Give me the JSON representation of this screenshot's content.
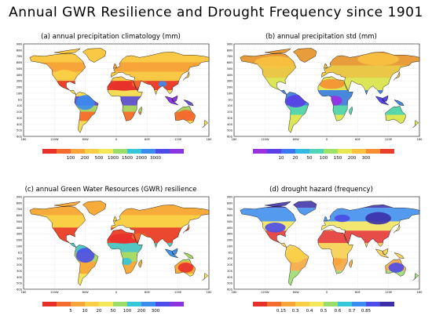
{
  "main_title": "Annual GWR Resilience and Drought Frequency since 1901",
  "axes": {
    "lat_labels": [
      "90N",
      "80N",
      "70N",
      "60N",
      "50N",
      "40N",
      "30N",
      "20N",
      "10N",
      "EQ",
      "10S",
      "20S",
      "30S",
      "40S",
      "50S",
      "60S"
    ],
    "lon_labels": [
      "180",
      "120W",
      "60W",
      "0",
      "60E",
      "120E",
      "180"
    ]
  },
  "panels": [
    {
      "title": "(a) annual precipitation climatology (mm)",
      "colorbar": {
        "labels": [
          "100",
          "200",
          "500",
          "1000",
          "1500",
          "2000",
          "3000"
        ],
        "colors": [
          "#e8302b",
          "#f46b2e",
          "#f7a43a",
          "#f9cf46",
          "#f3e85a",
          "#9bdd6a",
          "#35c6d9",
          "#3a8cf0",
          "#4d4be8",
          "#8b35e0"
        ]
      }
    },
    {
      "title": "(b) annual precipitation std (mm)",
      "colorbar": {
        "labels": [
          "10",
          "20",
          "50",
          "100",
          "150",
          "200",
          "300"
        ],
        "colors": [
          "#9b30e0",
          "#5a3ee6",
          "#3a78f0",
          "#33b8e2",
          "#4fd4b8",
          "#9de36a",
          "#e8e652",
          "#f8c241",
          "#f68f33",
          "#e8402b"
        ]
      }
    },
    {
      "title": "(c) annual Green Water Resources (GWR) resilience",
      "colorbar": {
        "labels": [
          "5",
          "10",
          "20",
          "50",
          "100",
          "200",
          "300"
        ],
        "colors": [
          "#e8302b",
          "#f46b2e",
          "#f7a43a",
          "#f9cf46",
          "#f3e85a",
          "#9bdd6a",
          "#35c6d9",
          "#3a8cf0",
          "#4d4be8",
          "#8b35e0"
        ]
      }
    },
    {
      "title": "(d) drought hazard (frequency)",
      "colorbar": {
        "labels": [
          "0.15",
          "0.3",
          "0.4",
          "0.5",
          "0.6",
          "0.7",
          "0.85"
        ],
        "colors": [
          "#e8302b",
          "#f46b2e",
          "#f7a43a",
          "#f9cf46",
          "#f3e85a",
          "#9bdd6a",
          "#35c6d9",
          "#3a8cf0",
          "#4d4be8",
          "#3b2fa8"
        ]
      }
    }
  ]
}
